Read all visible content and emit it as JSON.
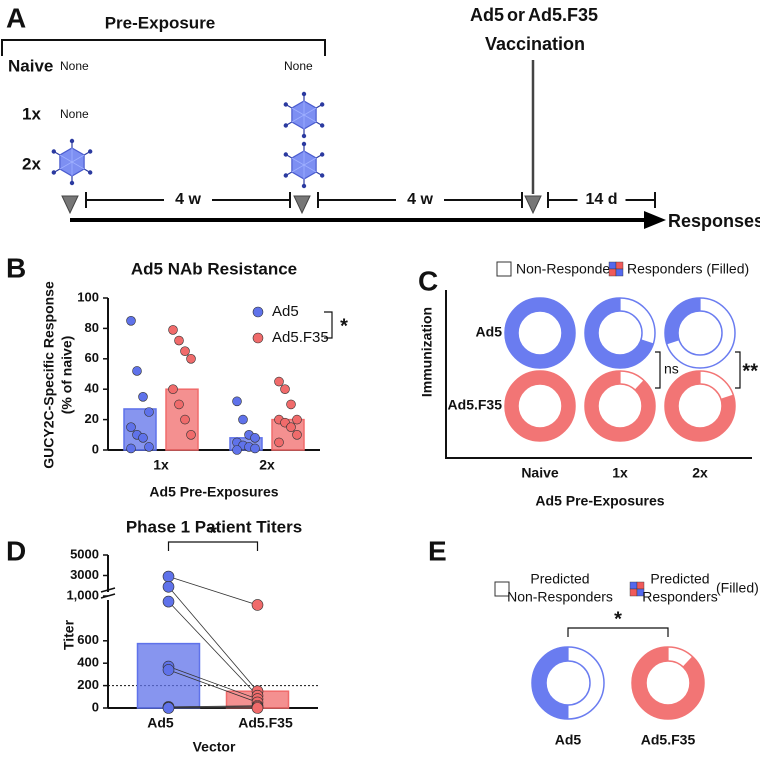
{
  "panel_labels": [
    "A",
    "B",
    "C",
    "D",
    "E"
  ],
  "timeline": {
    "title": "Pre-Exposure",
    "rows": [
      "Naive",
      "1x",
      "2x"
    ],
    "none_labels": [
      "None",
      "None",
      "None"
    ],
    "vaccine": [
      "Ad5",
      "or",
      "Ad5.F35"
    ],
    "event": "Vaccination",
    "intervals": [
      "4 w",
      "4 w",
      "14 d"
    ],
    "outcome": "Responses"
  },
  "chart_data": [
    {
      "type": "bar",
      "title": "Ad5 NAb Resistance",
      "y_label": [
        "GUCY2C-Specific Response",
        "(% of naive)"
      ],
      "x_label": "Ad5 Pre-Exposures",
      "categories": [
        "1x",
        "2x"
      ],
      "series": [
        {
          "name": "Ad5",
          "color": "#5f72ea",
          "values": [
            27,
            8
          ],
          "points": [
            [
              85,
              52,
              35,
              25,
              15,
              10,
              8,
              2,
              1
            ],
            [
              32,
              20,
              10,
              8,
              5,
              3,
              2,
              1,
              0
            ]
          ]
        },
        {
          "name": "Ad5.F35",
          "color": "#f06b6b",
          "values": [
            40,
            20
          ],
          "points": [
            [
              79,
              72,
              65,
              60,
              40,
              30,
              20,
              10
            ],
            [
              45,
              40,
              30,
              20,
              20,
              18,
              15,
              10,
              5
            ]
          ]
        }
      ],
      "ylim": [
        0,
        100
      ],
      "yticks": [
        0,
        20,
        40,
        60,
        80,
        100
      ],
      "annotation": "*"
    },
    {
      "type": "donut",
      "legend": [
        "Non-Responders",
        "Responders (Filled)"
      ],
      "y_label": "Immunization",
      "x_label": "Ad5 Pre-Exposures",
      "categories": [
        "Naive",
        "1x",
        "2x"
      ],
      "series": [
        {
          "name": "Ad5",
          "color": "#6a7cf0",
          "values": [
            100,
            70,
            30
          ]
        },
        {
          "name": "Ad5.F35",
          "color": "#f27575",
          "values": [
            100,
            88,
            80
          ]
        }
      ],
      "annotations": [
        "ns",
        "**"
      ]
    },
    {
      "type": "bar",
      "title": "Phase 1 Patient Titers",
      "y_label": "Titer",
      "x_label": "Vector",
      "categories": [
        "Ad5",
        "Ad5.F35"
      ],
      "colors": [
        "#5f72ea",
        "#f06b6b"
      ],
      "values": [
        575,
        150
      ],
      "points": [
        [
          2900,
          1900,
          950,
          370,
          340,
          10,
          5,
          0
        ],
        [
          920,
          150,
          110,
          80,
          50,
          20,
          10,
          0
        ]
      ],
      "paired": true,
      "ylim": [
        0,
        1000
      ],
      "yticks": [
        0,
        200,
        400,
        600
      ],
      "ylim_upper": [
        1000,
        5000
      ],
      "yticks_upper": [
        {
          "value": 1000,
          "label": "1,000"
        },
        3000,
        5000
      ],
      "threshold": 200,
      "annotation": "*"
    },
    {
      "type": "donut",
      "legend": [
        [
          "Predicted",
          "Non-Responders"
        ],
        [
          "Predicted",
          "Responders"
        ]
      ],
      "legend_note": "(Filled)",
      "categories": [
        "Ad5",
        "Ad5.F35"
      ],
      "colors": [
        "#6a7cf0",
        "#f27575"
      ],
      "values": [
        50,
        88
      ],
      "annotation": "*"
    }
  ]
}
